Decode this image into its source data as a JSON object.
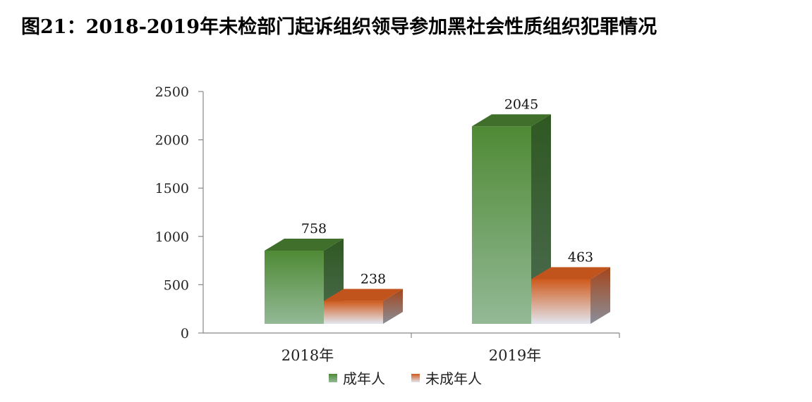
{
  "title": "图21：2018-2019年未检部门起诉组织领导参加黑社会性质组织犯罪情况",
  "chart_data": {
    "type": "bar",
    "style": "3d-clustered-column",
    "categories": [
      "2018年",
      "2019年"
    ],
    "series": [
      {
        "name": "成年人",
        "values": [
          758,
          2045
        ],
        "color": "#5a8f3e"
      },
      {
        "name": "未成年人",
        "values": [
          238,
          463
        ],
        "color": "#d9652a"
      }
    ],
    "yticks": [
      0,
      500,
      1000,
      1500,
      2000,
      2500
    ],
    "ylim": [
      0,
      2500
    ],
    "grid": false,
    "legend_position": "bottom"
  }
}
